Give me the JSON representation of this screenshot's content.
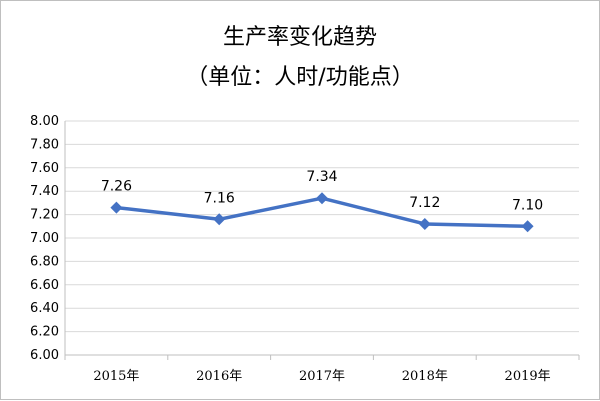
{
  "title_line1": "生产率变化趋势",
  "title_line2": "（单位：人时/功能点）",
  "chart_data": {
    "type": "line",
    "title": "生产率变化趋势",
    "subtitle": "（单位：人时/功能点）",
    "categories": [
      "2015年",
      "2016年",
      "2017年",
      "2018年",
      "2019年"
    ],
    "series": [
      {
        "values": [
          7.26,
          7.16,
          7.34,
          7.12,
          7.1
        ]
      }
    ],
    "data_labels": [
      "7.26",
      "7.16",
      "7.34",
      "7.12",
      "7.10"
    ],
    "y_tick_labels": [
      "8.00",
      "7.80",
      "7.60",
      "7.40",
      "7.20",
      "7.00",
      "6.80",
      "6.60",
      "6.40",
      "6.20",
      "6.00"
    ],
    "ylim": [
      6.0,
      8.0
    ],
    "ystep": 0.2,
    "grid": true,
    "legend": "none",
    "colors": {
      "line": "#4472C4",
      "grid": "#d9d9d9",
      "axis": "#bfbfbf"
    }
  }
}
